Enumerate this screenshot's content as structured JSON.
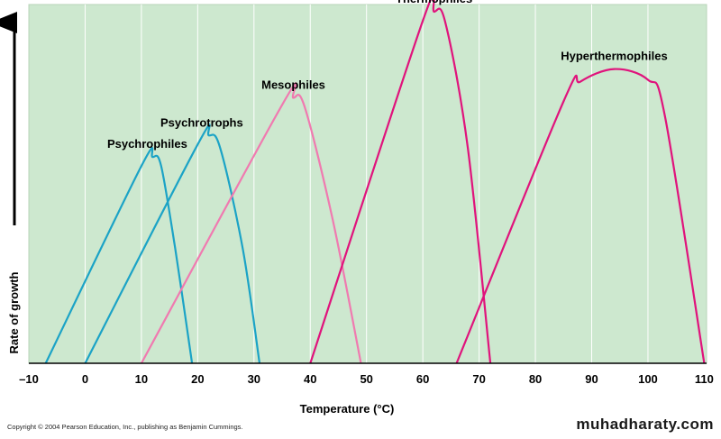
{
  "chart_data": {
    "type": "line",
    "xlabel": "Temperature (°C)",
    "ylabel": "Rate of growth",
    "xlim": [
      -10,
      110
    ],
    "ylim": [
      0,
      100
    ],
    "x_ticks": [
      "–10",
      "0",
      "10",
      "20",
      "30",
      "40",
      "50",
      "60",
      "70",
      "80",
      "90",
      "100",
      "110"
    ],
    "grid": "vertical",
    "background": "#cde8cf",
    "series": [
      {
        "name": "Psychrophiles",
        "color": "#1ba3c6",
        "points": [
          [
            -7,
            0
          ],
          [
            10,
            55
          ],
          [
            12,
            57.5
          ],
          [
            13.5,
            55
          ],
          [
            16,
            32
          ],
          [
            19,
            0
          ]
        ]
      },
      {
        "name": "Psychrotrophs",
        "color": "#1ba3c6",
        "points": [
          [
            0,
            0
          ],
          [
            20,
            61
          ],
          [
            22,
            63.5
          ],
          [
            24,
            60
          ],
          [
            28,
            32
          ],
          [
            31,
            0
          ]
        ]
      },
      {
        "name": "Mesophiles",
        "color": "#f07ab0",
        "points": [
          [
            10,
            0
          ],
          [
            35,
            72
          ],
          [
            37,
            74
          ],
          [
            39,
            71.5
          ],
          [
            44,
            40
          ],
          [
            49,
            0
          ]
        ]
      },
      {
        "name": "Thermophiles",
        "color": "#e0137c",
        "points": [
          [
            40,
            0
          ],
          [
            60,
            95.5
          ],
          [
            62,
            98
          ],
          [
            64,
            95
          ],
          [
            68,
            60
          ],
          [
            72,
            0
          ]
        ]
      },
      {
        "name": "Hyperthermophiles",
        "color": "#e0137c",
        "points": [
          [
            66,
            0
          ],
          [
            85,
            73
          ],
          [
            88,
            78.5
          ],
          [
            94,
            82
          ],
          [
            100,
            79
          ],
          [
            103,
            69
          ],
          [
            110,
            0
          ]
        ]
      }
    ]
  },
  "copyright": "Copyright © 2004 Pearson Education, Inc., publishing as Benjamin Cummings.",
  "watermark": "muhadharaty.com"
}
